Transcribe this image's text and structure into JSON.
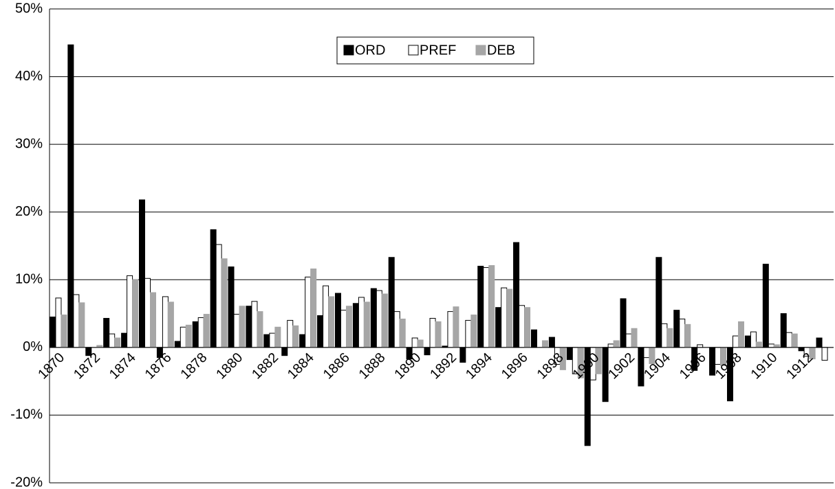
{
  "chart_data": {
    "type": "bar",
    "categories": [
      "1870",
      null,
      "1872",
      null,
      "1874",
      null,
      "1876",
      null,
      "1878",
      null,
      "1880",
      null,
      "1882",
      null,
      "1884",
      null,
      "1886",
      null,
      "1888",
      null,
      "1890",
      null,
      "1892",
      null,
      "1894",
      null,
      "1896",
      null,
      "1898",
      null,
      "1900",
      null,
      "1902",
      null,
      "1904",
      null,
      "1906",
      null,
      "1908",
      null,
      "1910",
      null,
      "1912",
      null
    ],
    "series": [
      {
        "name": "ORD",
        "color": "#000000",
        "values": [
          4.5,
          44.7,
          -1.2,
          4.3,
          2.1,
          21.8,
          -1.5,
          0.9,
          3.8,
          17.4,
          11.9,
          6.1,
          1.9,
          -1.2,
          1.9,
          4.7,
          8.0,
          6.5,
          8.7,
          13.3,
          -1.7,
          -1.1,
          0.2,
          -2.2,
          12.0,
          5.9,
          15.5,
          2.6,
          1.5,
          -1.8,
          -14.5,
          -8.0,
          7.2,
          -5.7,
          13.3,
          5.5,
          -3.4,
          -4.1,
          -7.9,
          1.7,
          12.3,
          5.0,
          -0.5,
          1.4
        ]
      },
      {
        "name": "PREF",
        "color": "#ffffff",
        "values": [
          7.3,
          7.8,
          0,
          2.0,
          10.6,
          10.2,
          7.5,
          3.0,
          4.4,
          15.2,
          4.9,
          6.8,
          2.1,
          4.0,
          10.4,
          9.1,
          5.5,
          7.4,
          8.4,
          5.3,
          1.4,
          4.3,
          5.3,
          4.0,
          11.8,
          8.8,
          6.2,
          0,
          -2.5,
          -3.9,
          -4.8,
          0.5,
          2.0,
          -1.5,
          3.5,
          4.2,
          0.4,
          -2.5,
          1.7,
          2.3,
          0.5,
          2.2,
          -1.3,
          -1.9
        ]
      },
      {
        "name": "DEB",
        "color": "#a6a6a6",
        "values": [
          4.8,
          6.6,
          0.3,
          1.4,
          10.0,
          8.1,
          6.7,
          3.3,
          4.9,
          13.1,
          6.1,
          5.3,
          3.0,
          3.2,
          11.6,
          7.5,
          6.1,
          6.7,
          7.9,
          4.2,
          1.1,
          3.8,
          6.0,
          4.8,
          12.1,
          8.6,
          5.9,
          1.0,
          -3.3,
          -4.5,
          -3.9,
          1.0,
          2.8,
          -2.4,
          2.8,
          3.4,
          0,
          -2.7,
          3.8,
          0.8,
          0.4,
          2.0,
          -1.7,
          0
        ]
      }
    ],
    "ylim": [
      -20,
      50
    ],
    "yticks": [
      {
        "value": -20,
        "label": "-20%"
      },
      {
        "value": -10,
        "label": "-10%"
      },
      {
        "value": 0,
        "label": "0%"
      },
      {
        "value": 10,
        "label": "10%"
      },
      {
        "value": 20,
        "label": "20%"
      },
      {
        "value": 30,
        "label": "30%"
      },
      {
        "value": 40,
        "label": "40%"
      },
      {
        "value": 50,
        "label": "50%"
      }
    ],
    "grid": true,
    "legend": "top"
  }
}
